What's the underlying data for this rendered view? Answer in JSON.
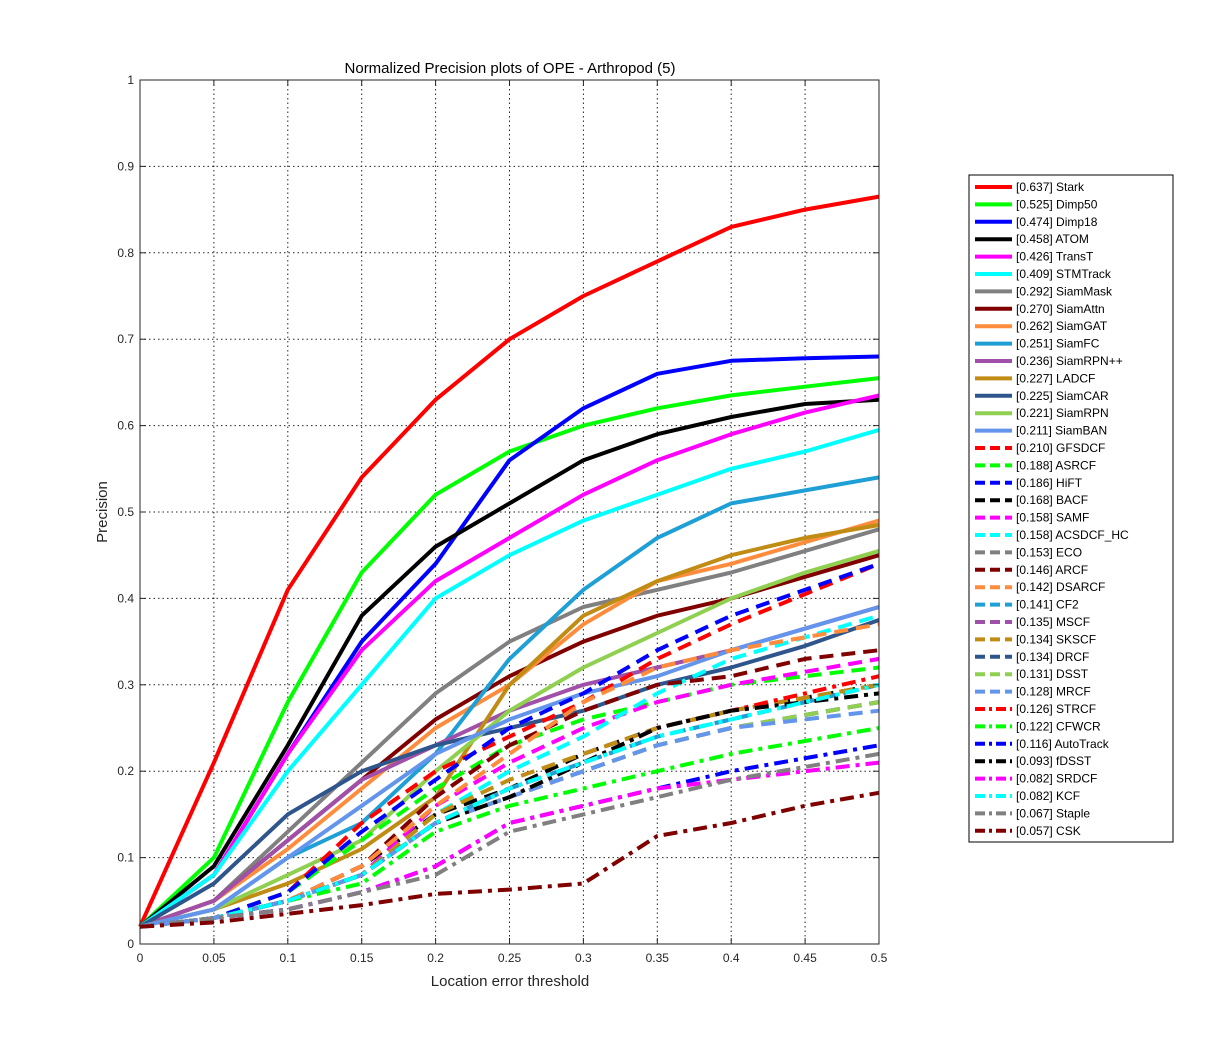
{
  "chart_data": {
    "type": "line",
    "title": "Normalized Precision plots of OPE - Arthropod (5)",
    "xlabel": "Location error threshold",
    "ylabel": "Precision",
    "xlim": [
      0,
      0.5
    ],
    "ylim": [
      0,
      1
    ],
    "grid": true,
    "legend_placement": "right",
    "x_ticks": [
      "0",
      "0.05",
      "0.1",
      "0.15",
      "0.2",
      "0.25",
      "0.3",
      "0.35",
      "0.4",
      "0.45",
      "0.5"
    ],
    "y_ticks": [
      "0",
      "0.1",
      "0.2",
      "0.3",
      "0.4",
      "0.5",
      "0.6",
      "0.7",
      "0.8",
      "0.9",
      "1"
    ],
    "x": [
      0,
      0.05,
      0.1,
      0.15,
      0.2,
      0.25,
      0.3,
      0.35,
      0.4,
      0.45,
      0.5
    ],
    "series": [
      {
        "name": "[0.637] Stark",
        "color": "#ff0000",
        "style": "solid",
        "values": [
          0.02,
          0.21,
          0.41,
          0.54,
          0.63,
          0.7,
          0.75,
          0.79,
          0.83,
          0.85,
          0.865
        ]
      },
      {
        "name": "[0.525] Dimp50",
        "color": "#00ff00",
        "style": "solid",
        "values": [
          0.02,
          0.1,
          0.28,
          0.43,
          0.52,
          0.57,
          0.6,
          0.62,
          0.635,
          0.645,
          0.655
        ]
      },
      {
        "name": "[0.474] Dimp18",
        "color": "#0000ff",
        "style": "solid",
        "values": [
          0.02,
          0.08,
          0.22,
          0.35,
          0.44,
          0.56,
          0.62,
          0.66,
          0.675,
          0.678,
          0.68
        ]
      },
      {
        "name": "[0.458] ATOM",
        "color": "#000000",
        "style": "solid",
        "values": [
          0.02,
          0.09,
          0.23,
          0.38,
          0.46,
          0.51,
          0.56,
          0.59,
          0.61,
          0.625,
          0.63
        ]
      },
      {
        "name": "[0.426] TransT",
        "color": "#ff00ff",
        "style": "solid",
        "values": [
          0.02,
          0.08,
          0.22,
          0.34,
          0.42,
          0.47,
          0.52,
          0.56,
          0.59,
          0.615,
          0.635
        ]
      },
      {
        "name": "[0.409] STMTrack",
        "color": "#00ffff",
        "style": "solid",
        "values": [
          0.02,
          0.08,
          0.2,
          0.3,
          0.4,
          0.45,
          0.49,
          0.52,
          0.55,
          0.57,
          0.595
        ]
      },
      {
        "name": "[0.292] SiamMask",
        "color": "#808080",
        "style": "solid",
        "values": [
          0.02,
          0.05,
          0.13,
          0.21,
          0.29,
          0.35,
          0.39,
          0.41,
          0.43,
          0.455,
          0.48
        ]
      },
      {
        "name": "[0.270] SiamAttn",
        "color": "#800000",
        "style": "solid",
        "values": [
          0.02,
          0.05,
          0.12,
          0.19,
          0.26,
          0.31,
          0.35,
          0.38,
          0.4,
          0.425,
          0.45
        ]
      },
      {
        "name": "[0.262] SiamGAT",
        "color": "#ff8c3c",
        "style": "solid",
        "values": [
          0.02,
          0.05,
          0.11,
          0.18,
          0.25,
          0.3,
          0.37,
          0.42,
          0.44,
          0.465,
          0.49
        ]
      },
      {
        "name": "[0.251] SiamFC",
        "color": "#1e9fd6",
        "style": "solid",
        "values": [
          0.02,
          0.04,
          0.1,
          0.14,
          0.22,
          0.33,
          0.41,
          0.47,
          0.51,
          0.525,
          0.54
        ]
      },
      {
        "name": "[0.236] SiamRPN++",
        "color": "#a050a8",
        "style": "solid",
        "values": [
          0.02,
          0.05,
          0.12,
          0.19,
          0.23,
          0.27,
          0.3,
          0.32,
          0.34,
          0.365,
          0.39
        ]
      },
      {
        "name": "[0.227] LADCF",
        "color": "#c08c14",
        "style": "solid",
        "values": [
          0.02,
          0.04,
          0.07,
          0.11,
          0.17,
          0.3,
          0.38,
          0.42,
          0.45,
          0.47,
          0.485
        ]
      },
      {
        "name": "[0.225] SiamCAR",
        "color": "#2f568c",
        "style": "solid",
        "values": [
          0.02,
          0.07,
          0.15,
          0.2,
          0.23,
          0.25,
          0.27,
          0.3,
          0.32,
          0.345,
          0.375
        ]
      },
      {
        "name": "[0.221] SiamRPN",
        "color": "#90d050",
        "style": "solid",
        "values": [
          0.02,
          0.04,
          0.08,
          0.12,
          0.2,
          0.27,
          0.32,
          0.36,
          0.4,
          0.43,
          0.455
        ]
      },
      {
        "name": "[0.211] SiamBAN",
        "color": "#6495ed",
        "style": "solid",
        "values": [
          0.02,
          0.04,
          0.1,
          0.16,
          0.22,
          0.26,
          0.29,
          0.31,
          0.34,
          0.365,
          0.39
        ]
      },
      {
        "name": "[0.210] GFSDCF",
        "color": "#ff0000",
        "style": "dashed",
        "values": [
          0.02,
          0.03,
          0.06,
          0.14,
          0.2,
          0.24,
          0.28,
          0.33,
          0.37,
          0.405,
          0.44
        ]
      },
      {
        "name": "[0.188] ASRCF",
        "color": "#00ff00",
        "style": "dashed",
        "values": [
          0.02,
          0.03,
          0.06,
          0.12,
          0.18,
          0.23,
          0.26,
          0.28,
          0.3,
          0.31,
          0.32
        ]
      },
      {
        "name": "[0.186] HiFT",
        "color": "#0000ff",
        "style": "dashed",
        "values": [
          0.02,
          0.03,
          0.06,
          0.13,
          0.19,
          0.25,
          0.29,
          0.34,
          0.38,
          0.41,
          0.44
        ]
      },
      {
        "name": "[0.168] BACF",
        "color": "#000000",
        "style": "dashed",
        "values": [
          0.02,
          0.03,
          0.05,
          0.09,
          0.15,
          0.18,
          0.22,
          0.25,
          0.27,
          0.285,
          0.3
        ]
      },
      {
        "name": "[0.158] SAMF",
        "color": "#ff00ff",
        "style": "dashed",
        "values": [
          0.02,
          0.03,
          0.05,
          0.08,
          0.16,
          0.21,
          0.25,
          0.28,
          0.3,
          0.315,
          0.33
        ]
      },
      {
        "name": "[0.158] ACSDCF_HC",
        "color": "#00ffff",
        "style": "dashed",
        "values": [
          0.02,
          0.03,
          0.05,
          0.08,
          0.15,
          0.2,
          0.24,
          0.29,
          0.33,
          0.355,
          0.38
        ]
      },
      {
        "name": "[0.153] ECO",
        "color": "#808080",
        "style": "dashed",
        "values": [
          0.02,
          0.03,
          0.05,
          0.08,
          0.14,
          0.18,
          0.21,
          0.24,
          0.26,
          0.28,
          0.3
        ]
      },
      {
        "name": "[0.146] ARCF",
        "color": "#800000",
        "style": "dashed",
        "values": [
          0.02,
          0.03,
          0.05,
          0.09,
          0.17,
          0.23,
          0.27,
          0.3,
          0.31,
          0.33,
          0.34
        ]
      },
      {
        "name": "[0.142] DSARCF",
        "color": "#ff8c3c",
        "style": "dashed",
        "values": [
          0.02,
          0.03,
          0.05,
          0.09,
          0.16,
          0.22,
          0.28,
          0.32,
          0.34,
          0.355,
          0.37
        ]
      },
      {
        "name": "[0.141] CF2",
        "color": "#1e9fd6",
        "style": "dashed",
        "values": [
          0.02,
          0.03,
          0.05,
          0.08,
          0.14,
          0.18,
          0.21,
          0.24,
          0.26,
          0.28,
          0.3
        ]
      },
      {
        "name": "[0.135] MSCF",
        "color": "#a050a8",
        "style": "dashed",
        "values": [
          0.02,
          0.03,
          0.05,
          0.08,
          0.14,
          0.17,
          0.2,
          0.23,
          0.25,
          0.265,
          0.28
        ]
      },
      {
        "name": "[0.134] SKSCF",
        "color": "#c08c14",
        "style": "dashed",
        "values": [
          0.02,
          0.03,
          0.05,
          0.08,
          0.15,
          0.19,
          0.22,
          0.25,
          0.27,
          0.285,
          0.3
        ]
      },
      {
        "name": "[0.134] DRCF",
        "color": "#2f568c",
        "style": "dashed",
        "values": [
          0.02,
          0.03,
          0.05,
          0.08,
          0.14,
          0.17,
          0.2,
          0.23,
          0.25,
          0.265,
          0.28
        ]
      },
      {
        "name": "[0.131] DSST",
        "color": "#90d050",
        "style": "dashed",
        "values": [
          0.02,
          0.03,
          0.05,
          0.08,
          0.14,
          0.17,
          0.2,
          0.23,
          0.25,
          0.265,
          0.28
        ]
      },
      {
        "name": "[0.128] MRCF",
        "color": "#6495ed",
        "style": "dashed",
        "values": [
          0.02,
          0.03,
          0.05,
          0.08,
          0.14,
          0.17,
          0.2,
          0.23,
          0.25,
          0.26,
          0.27
        ]
      },
      {
        "name": "[0.126] STRCF",
        "color": "#ff0000",
        "style": "dashdot",
        "values": [
          0.02,
          0.03,
          0.05,
          0.08,
          0.14,
          0.18,
          0.21,
          0.25,
          0.27,
          0.29,
          0.31
        ]
      },
      {
        "name": "[0.122] CFWCR",
        "color": "#00ff00",
        "style": "dashdot",
        "values": [
          0.02,
          0.03,
          0.05,
          0.07,
          0.13,
          0.16,
          0.18,
          0.2,
          0.22,
          0.235,
          0.25
        ]
      },
      {
        "name": "[0.116] AutoTrack",
        "color": "#0000ff",
        "style": "dashdot",
        "values": [
          0.02,
          0.03,
          0.04,
          0.06,
          0.09,
          0.14,
          0.16,
          0.18,
          0.2,
          0.215,
          0.23
        ]
      },
      {
        "name": "[0.093] fDSST",
        "color": "#000000",
        "style": "dashdot",
        "values": [
          0.02,
          0.03,
          0.05,
          0.08,
          0.14,
          0.17,
          0.21,
          0.25,
          0.27,
          0.28,
          0.29
        ]
      },
      {
        "name": "[0.082] SRDCF",
        "color": "#ff00ff",
        "style": "dashdot",
        "values": [
          0.02,
          0.03,
          0.04,
          0.06,
          0.09,
          0.14,
          0.16,
          0.18,
          0.19,
          0.2,
          0.21
        ]
      },
      {
        "name": "[0.082] KCF",
        "color": "#00ffff",
        "style": "dashdot",
        "values": [
          0.02,
          0.03,
          0.05,
          0.08,
          0.14,
          0.18,
          0.21,
          0.24,
          0.26,
          0.28,
          0.3
        ]
      },
      {
        "name": "[0.067] Staple",
        "color": "#808080",
        "style": "dashdot",
        "values": [
          0.02,
          0.03,
          0.04,
          0.06,
          0.08,
          0.13,
          0.15,
          0.17,
          0.19,
          0.205,
          0.22
        ]
      },
      {
        "name": "[0.057] CSK",
        "color": "#800000",
        "style": "dashdot",
        "values": [
          0.02,
          0.025,
          0.035,
          0.045,
          0.058,
          0.063,
          0.07,
          0.125,
          0.14,
          0.16,
          0.175
        ]
      }
    ]
  }
}
